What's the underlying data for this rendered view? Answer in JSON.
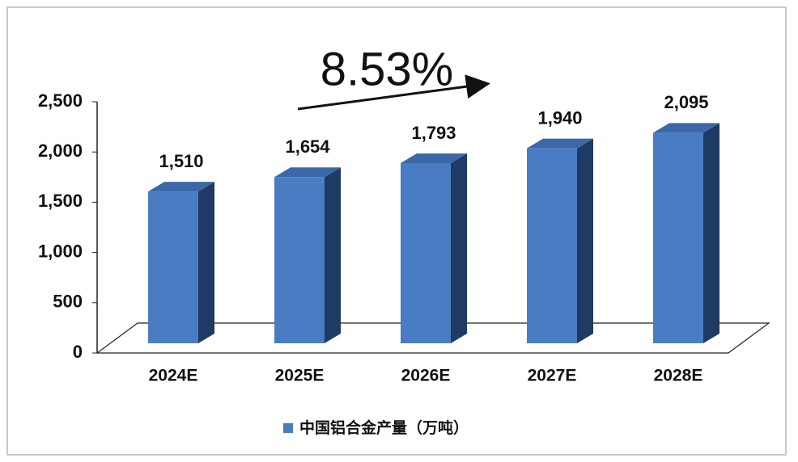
{
  "chart_data": {
    "type": "bar3d",
    "annotation": "8.53%",
    "categories": [
      "2024E",
      "2025E",
      "2026E",
      "2027E",
      "2028E"
    ],
    "series": [
      {
        "name": "中国铝合金产量（万吨）",
        "color": "#4a7cc4",
        "values": [
          1510,
          1654,
          1793,
          1940,
          2095
        ],
        "value_labels": [
          "1,510",
          "1,654",
          "1,793",
          "1,940",
          "2,095"
        ]
      }
    ],
    "ylim": [
      0,
      2500
    ],
    "yticks": [
      0,
      500,
      {
        "value": 1000,
        "label": "1,000"
      },
      {
        "value": 1500,
        "label": "1,500"
      },
      {
        "value": 2000,
        "label": "2,000"
      },
      {
        "value": 2500,
        "label": "2,500"
      }
    ],
    "legend": "bottom"
  }
}
